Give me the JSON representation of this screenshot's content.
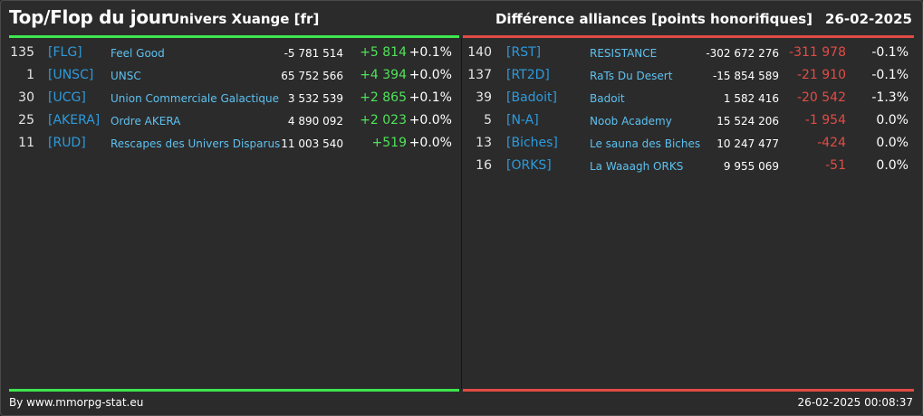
{
  "header": {
    "title": "Top/Flop du jour",
    "subtitle": "Univers Xuange [fr]",
    "right_title": "Différence alliances [points honorifiques]",
    "date": "26-02-2025"
  },
  "colors": {
    "top_accent": "#3ee64f",
    "flop_accent": "#e14b44",
    "tag": "#2d9bdc",
    "name": "#5ec1f0",
    "background": "#2b2b2b"
  },
  "top": [
    {
      "rank": "135",
      "tag": "[FLG]",
      "name": "Feel Good",
      "points": "-5 781 514",
      "diff": "+5 814",
      "pct": "+0.1%"
    },
    {
      "rank": "1",
      "tag": "[UNSC]",
      "name": "UNSC",
      "points": "65 752 566",
      "diff": "+4 394",
      "pct": "+0.0%"
    },
    {
      "rank": "30",
      "tag": "[UCG]",
      "name": "Union Commerciale Galactique",
      "points": "3 532 539",
      "diff": "+2 865",
      "pct": "+0.1%"
    },
    {
      "rank": "25",
      "tag": "[AKERA]",
      "name": "Ordre AKERA",
      "points": "4 890 092",
      "diff": "+2 023",
      "pct": "+0.0%"
    },
    {
      "rank": "11",
      "tag": "[RUD]",
      "name": "Rescapes des Univers Disparus",
      "points": "11 003 540",
      "diff": "+519",
      "pct": "+0.0%"
    }
  ],
  "flop": [
    {
      "rank": "140",
      "tag": "[RST]",
      "name": "RESISTANCE",
      "points": "-302 672 276",
      "diff": "-311 978",
      "pct": "-0.1%"
    },
    {
      "rank": "137",
      "tag": "[RT2D]",
      "name": "RaTs Du Desert",
      "points": "-15 854 589",
      "diff": "-21 910",
      "pct": "-0.1%"
    },
    {
      "rank": "39",
      "tag": "[Badoit]",
      "name": "Badoit",
      "points": "1 582 416",
      "diff": "-20 542",
      "pct": "-1.3%"
    },
    {
      "rank": "5",
      "tag": "[N-A]",
      "name": "Noob Academy",
      "points": "15 524 206",
      "diff": "-1 954",
      "pct": "0.0%"
    },
    {
      "rank": "13",
      "tag": "[Biches]",
      "name": "Le sauna des Biches",
      "points": "10 247 477",
      "diff": "-424",
      "pct": "0.0%"
    },
    {
      "rank": "16",
      "tag": "[ORKS]",
      "name": "La Waaagh ORKS",
      "points": "9 955 069",
      "diff": "-51",
      "pct": "0.0%"
    }
  ],
  "footer": {
    "credit": "By www.mmorpg-stat.eu",
    "timestamp": "26-02-2025 00:08:37"
  }
}
